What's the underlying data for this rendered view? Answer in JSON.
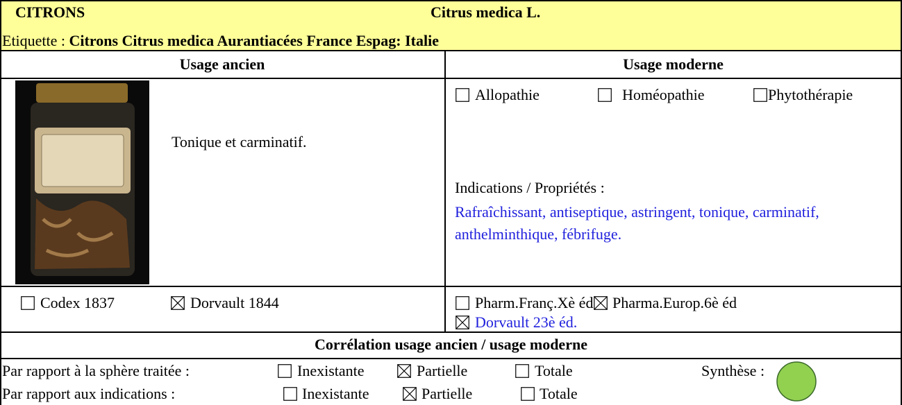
{
  "header": {
    "name": "CITRONS",
    "latin": "Citrus medica L.",
    "label_prefix": "Etiquette :",
    "label": "Citrons Citrus medica Aurantiacées France Espag: Italie"
  },
  "usage_ancien": {
    "title": "Usage ancien",
    "text": "Tonique et carminatif.",
    "sources": [
      {
        "label": "Codex 1837",
        "checked": false
      },
      {
        "label": "Dorvault 1844",
        "checked": true
      }
    ]
  },
  "usage_moderne": {
    "title": "Usage moderne",
    "types": [
      {
        "label": "Allopathie",
        "checked": false
      },
      {
        "label": "Homéopathie",
        "checked": false
      },
      {
        "label": "Phytothérapie",
        "checked": false
      }
    ],
    "indications_title": "Indications / Propriétés :",
    "indications": "Rafraîchissant, antiseptique, astringent, tonique, carminatif, anthelminthique, fébrifuge.",
    "sources": [
      {
        "label": "Pharm.Franç.Xè éd",
        "checked": false
      },
      {
        "label": "Pharma.Europ.6è éd",
        "checked": true
      },
      {
        "label": "Dorvault 23è éd.",
        "checked": true
      }
    ]
  },
  "correlation": {
    "title": "Corrélation usage ancien / usage moderne",
    "rows": [
      {
        "label": "Par rapport à la sphère traitée :",
        "options": [
          {
            "label": "Inexistante",
            "checked": false
          },
          {
            "label": "Partielle",
            "checked": true
          },
          {
            "label": "Totale",
            "checked": false
          }
        ]
      },
      {
        "label": "Par rapport aux indications :",
        "options": [
          {
            "label": "Inexistante",
            "checked": false
          },
          {
            "label": "Partielle",
            "checked": true
          },
          {
            "label": "Totale",
            "checked": false
          }
        ]
      }
    ],
    "synthese": "Synthèse :",
    "synthese_color": "#92d050"
  }
}
